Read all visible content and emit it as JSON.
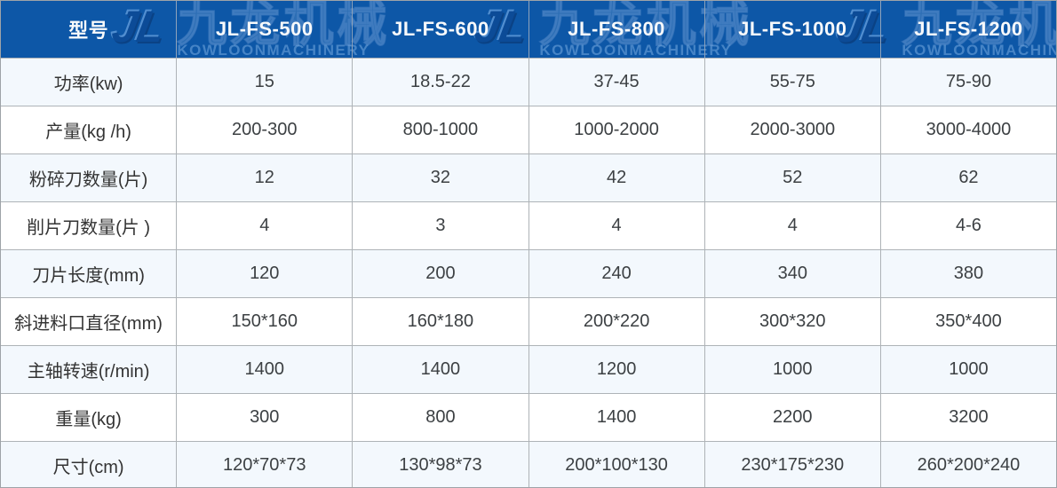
{
  "header": {
    "row_label_column": "型号",
    "models": [
      "JL-FS-500",
      "JL-FS-600",
      "JL-FS-800",
      "JL-FS-1000",
      "JL-FS-1200"
    ]
  },
  "watermark": {
    "monogram": "JL",
    "brand_cn": "九龙机械",
    "brand_en": "KOWLOONMACHINERY"
  },
  "rows": [
    {
      "label": "功率(kw)",
      "values": [
        "15",
        "18.5-22",
        "37-45",
        "55-75",
        "75-90"
      ]
    },
    {
      "label": "产量(kg /h)",
      "values": [
        "200-300",
        "800-1000",
        "1000-2000",
        "2000-3000",
        "3000-4000"
      ]
    },
    {
      "label": "粉碎刀数量(片)",
      "values": [
        "12",
        "32",
        "42",
        "52",
        "62"
      ]
    },
    {
      "label": "削片刀数量(片 )",
      "values": [
        "4",
        "3",
        "4",
        "4",
        "4-6"
      ]
    },
    {
      "label": "刀片长度(mm)",
      "values": [
        "120",
        "200",
        "240",
        "340",
        "380"
      ]
    },
    {
      "label": "斜进料口直径(mm)",
      "values": [
        "150*160",
        "160*180",
        "200*220",
        "300*320",
        "350*400"
      ]
    },
    {
      "label": "主轴转速(r/min)",
      "values": [
        "1400",
        "1400",
        "1200",
        "1000",
        "1000"
      ]
    },
    {
      "label": "重量(kg)",
      "values": [
        "300",
        "800",
        "1400",
        "2200",
        "3200"
      ]
    },
    {
      "label": "尺寸(cm)",
      "values": [
        "120*70*73",
        "130*98*73",
        "200*100*130",
        "230*175*230",
        "260*200*240"
      ]
    }
  ],
  "colors": {
    "header_bg": "#0d57a7",
    "header_text": "#f7f9fb",
    "row_bg": "#ffffff",
    "row_alt_bg": "#f3f8fd",
    "border": "#aeb3b7",
    "body_text": "#3c4043"
  }
}
